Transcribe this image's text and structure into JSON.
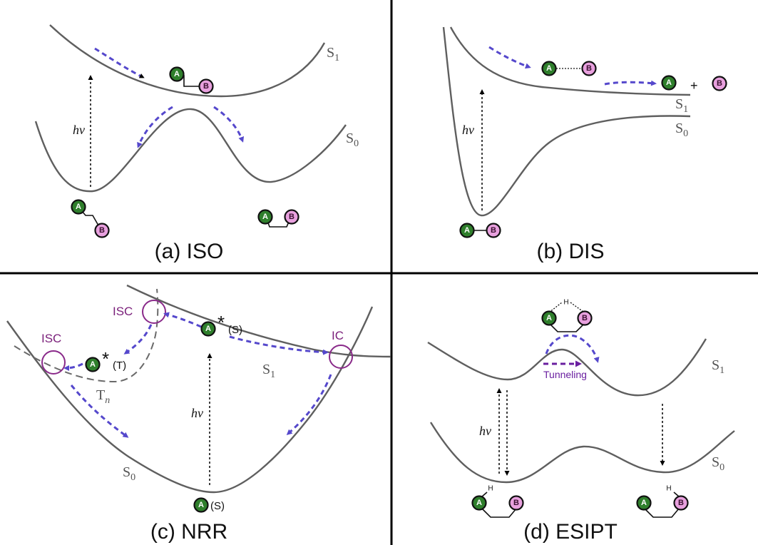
{
  "panels": {
    "a": {
      "title": "(a) ISO",
      "s1": "S",
      "s1_sub": "1",
      "s0": "S",
      "s0_sub": "0",
      "hv": "hν",
      "atom_a": "A",
      "atom_b": "B"
    },
    "b": {
      "title": "(b) DIS",
      "s1": "S",
      "s1_sub": "1",
      "s0": "S",
      "s0_sub": "0",
      "hv": "hν",
      "plus": "+",
      "atom_a": "A",
      "atom_b": "B"
    },
    "c": {
      "title": "(c) NRR",
      "s1": "S",
      "s1_sub": "1",
      "s0": "S",
      "s0_sub": "0",
      "tn": "T",
      "tn_sub": "n",
      "hv": "hν",
      "isc_label": "ISC",
      "ic_label": "IC",
      "star": "*",
      "spin_s": "(S)",
      "spin_t": "(T)",
      "atom_a": "A"
    },
    "d": {
      "title": "(d) ESIPT",
      "s1": "S",
      "s1_sub": "1",
      "s0": "S",
      "s0_sub": "0",
      "hv": "hν",
      "tunneling": "Tunneling",
      "h_atom": "H",
      "atom_a": "A",
      "atom_b": "B"
    }
  },
  "colors": {
    "curve": "#5f5f5f",
    "arrow": "#5548cc",
    "atom_a": "#2f7f2c",
    "atom_b": "#e8a0de",
    "crossing_circle": "#8a2a8a",
    "tunneling_text": "#6a1fa0"
  }
}
